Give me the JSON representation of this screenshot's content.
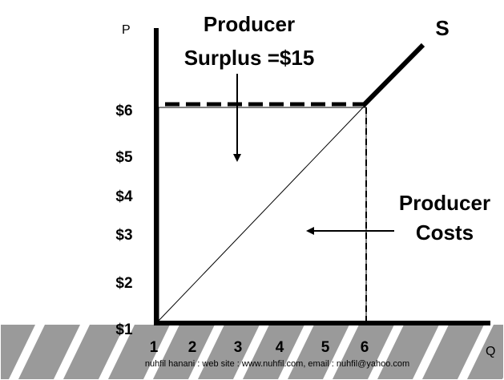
{
  "axes": {
    "y_label": "P",
    "x_label": "Q",
    "y_ticks": [
      "$6",
      "$5",
      "$4",
      "$3",
      "$2",
      "$1"
    ],
    "x_ticks": [
      "1",
      "2",
      "3",
      "4",
      "5",
      "6"
    ]
  },
  "curve_label": "S",
  "annotations": {
    "surplus": [
      "Producer",
      "Surplus =$15"
    ],
    "costs": [
      "Producer",
      "Costs"
    ]
  },
  "footer": "nuhfil hanani : web site : www.nuhfil.com, email : nuhfil@yahoo.com"
}
